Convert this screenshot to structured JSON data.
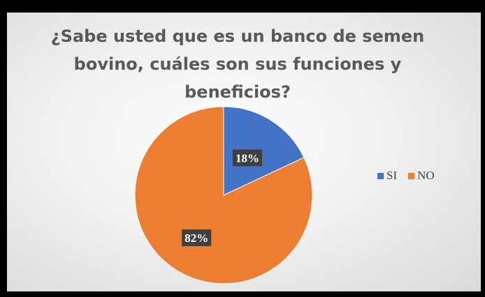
{
  "chart_data": {
    "type": "pie",
    "title": "¿Sabe usted que es un banco de semen bovino, cuáles son sus funciones y beneficios?",
    "title_lines": [
      "¿Sabe usted que es un banco de semen",
      "bovino, cuáles son sus funciones y",
      "beneficios?"
    ],
    "categories": [
      "SI",
      "NO"
    ],
    "values": [
      18,
      82
    ],
    "data_labels": [
      "18%",
      "82%"
    ],
    "colors": [
      "#4472c4",
      "#ed7d31"
    ],
    "legend_position": "right"
  }
}
